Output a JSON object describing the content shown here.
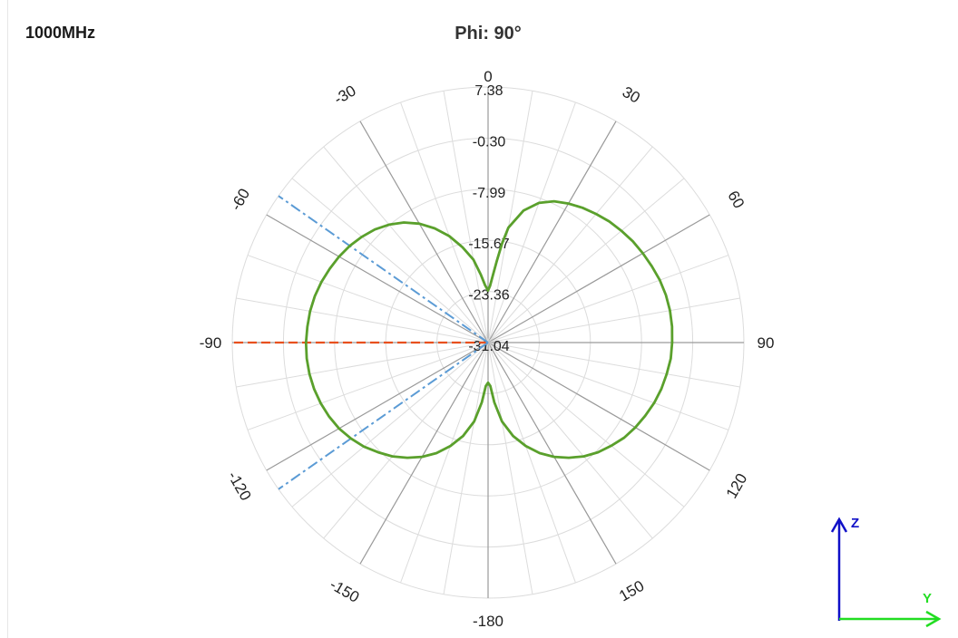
{
  "header": {
    "frequency": "1000MHz",
    "title": "Phi: 90°"
  },
  "chart_data": {
    "type": "polar-line",
    "title": "Phi: 90°",
    "angle_unit": "deg",
    "angle_ticks": [
      0,
      30,
      60,
      90,
      120,
      150,
      -180,
      -150,
      -120,
      -90,
      -60,
      -30
    ],
    "radial_ticks": [
      "7.38",
      "-0.30",
      "-7.99",
      "-15.67",
      "-23.36",
      "-31.04"
    ],
    "r_range": [
      -31.04,
      7.38
    ],
    "series": [
      {
        "color": "#5aa02c",
        "style": "solid",
        "points": [
          [
            0,
            -23.2
          ],
          [
            2,
            -22.5
          ],
          [
            4,
            -21.0
          ],
          [
            6,
            -18.8
          ],
          [
            8,
            -16.0
          ],
          [
            10,
            -13.5
          ],
          [
            15,
            -10.5
          ],
          [
            20,
            -8.7
          ],
          [
            25,
            -7.6
          ],
          [
            30,
            -6.9
          ],
          [
            35,
            -6.3
          ],
          [
            40,
            -5.8
          ],
          [
            45,
            -5.3
          ],
          [
            50,
            -4.9
          ],
          [
            55,
            -4.5
          ],
          [
            60,
            -4.2
          ],
          [
            65,
            -3.9
          ],
          [
            70,
            -3.6
          ],
          [
            75,
            -3.4
          ],
          [
            80,
            -3.3
          ],
          [
            85,
            -3.3
          ],
          [
            90,
            -3.4
          ],
          [
            95,
            -3.5
          ],
          [
            100,
            -3.8
          ],
          [
            105,
            -4.1
          ],
          [
            110,
            -4.5
          ],
          [
            115,
            -5.0
          ],
          [
            120,
            -5.5
          ],
          [
            125,
            -6.1
          ],
          [
            130,
            -6.9
          ],
          [
            135,
            -7.7
          ],
          [
            140,
            -8.7
          ],
          [
            145,
            -9.9
          ],
          [
            150,
            -11.2
          ],
          [
            155,
            -12.7
          ],
          [
            160,
            -14.5
          ],
          [
            165,
            -16.5
          ],
          [
            170,
            -19.0
          ],
          [
            174,
            -22.0
          ],
          [
            177,
            -24.5
          ],
          [
            180,
            -25.0
          ],
          [
            -177,
            -24.5
          ],
          [
            -174,
            -22.0
          ],
          [
            -170,
            -19.0
          ],
          [
            -165,
            -16.5
          ],
          [
            -160,
            -14.5
          ],
          [
            -155,
            -12.7
          ],
          [
            -150,
            -11.2
          ],
          [
            -145,
            -9.9
          ],
          [
            -140,
            -8.7
          ],
          [
            -135,
            -7.7
          ],
          [
            -130,
            -6.7
          ],
          [
            -125,
            -5.9
          ],
          [
            -120,
            -5.2
          ],
          [
            -115,
            -4.7
          ],
          [
            -110,
            -4.3
          ],
          [
            -105,
            -4.0
          ],
          [
            -100,
            -3.8
          ],
          [
            -95,
            -3.7
          ],
          [
            -90,
            -3.7
          ],
          [
            -85,
            -3.8
          ],
          [
            -80,
            -3.9
          ],
          [
            -75,
            -4.1
          ],
          [
            -70,
            -4.4
          ],
          [
            -65,
            -4.8
          ],
          [
            -60,
            -5.2
          ],
          [
            -55,
            -5.7
          ],
          [
            -50,
            -6.3
          ],
          [
            -45,
            -7.0
          ],
          [
            -40,
            -7.9
          ],
          [
            -35,
            -9.0
          ],
          [
            -30,
            -10.4
          ],
          [
            -25,
            -12.1
          ],
          [
            -20,
            -14.0
          ],
          [
            -15,
            -16.2
          ],
          [
            -10,
            -18.4
          ],
          [
            -6,
            -20.8
          ],
          [
            -3,
            -22.4
          ],
          [
            0,
            -23.2
          ]
        ]
      }
    ],
    "markers": [
      {
        "angle": -90,
        "color": "#e8501e",
        "style": "dashed"
      },
      {
        "angle": -55,
        "color": "#5b9bd5",
        "style": "dash-dot"
      },
      {
        "angle": -125,
        "color": "#5b9bd5",
        "style": "dash-dot"
      }
    ]
  },
  "axes_icon": {
    "vertical_label": "Z",
    "horizontal_label": "Y",
    "vertical_color": "#1010c8",
    "horizontal_color": "#22dd22"
  }
}
